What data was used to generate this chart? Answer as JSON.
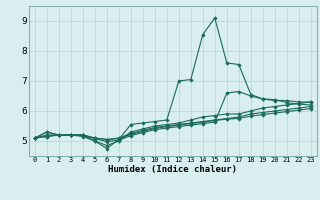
{
  "xlabel": "Humidex (Indice chaleur)",
  "bg_color": "#d9eeee",
  "grid_color": "#b8d8d8",
  "line_color": "#1a6b5a",
  "xlim": [
    -0.5,
    23.5
  ],
  "ylim": [
    4.5,
    9.5
  ],
  "xticks": [
    0,
    1,
    2,
    3,
    4,
    5,
    6,
    7,
    8,
    9,
    10,
    11,
    12,
    13,
    14,
    15,
    16,
    17,
    18,
    19,
    20,
    21,
    22,
    23
  ],
  "yticks": [
    5,
    6,
    7,
    8,
    9
  ],
  "series": [
    [
      5.1,
      5.3,
      5.2,
      5.2,
      5.2,
      5.0,
      4.75,
      5.05,
      5.55,
      5.6,
      5.65,
      5.7,
      7.0,
      7.05,
      8.55,
      9.1,
      7.6,
      7.55,
      6.55,
      6.4,
      6.35,
      6.35,
      6.3,
      6.3
    ],
    [
      5.1,
      5.3,
      5.2,
      5.2,
      5.15,
      5.0,
      4.85,
      5.0,
      5.3,
      5.4,
      5.5,
      5.55,
      5.6,
      5.7,
      5.8,
      5.85,
      5.9,
      5.9,
      6.0,
      6.1,
      6.15,
      6.2,
      6.25,
      6.3
    ],
    [
      5.1,
      5.15,
      5.2,
      5.2,
      5.2,
      5.1,
      5.05,
      5.1,
      5.25,
      5.35,
      5.45,
      5.5,
      5.55,
      5.6,
      5.65,
      5.7,
      5.75,
      5.8,
      5.9,
      5.95,
      6.0,
      6.05,
      6.1,
      6.15
    ],
    [
      5.1,
      5.15,
      5.2,
      5.2,
      5.2,
      5.1,
      5.05,
      5.08,
      5.22,
      5.32,
      5.42,
      5.48,
      5.53,
      5.58,
      5.63,
      5.68,
      5.73,
      5.75,
      5.83,
      5.88,
      5.93,
      5.98,
      6.03,
      6.08
    ],
    [
      5.1,
      5.2,
      5.2,
      5.2,
      5.18,
      5.08,
      4.98,
      5.03,
      5.18,
      5.28,
      5.38,
      5.43,
      5.48,
      5.53,
      5.58,
      5.63,
      6.6,
      6.65,
      6.5,
      6.4,
      6.38,
      6.28,
      6.23,
      6.2
    ]
  ]
}
